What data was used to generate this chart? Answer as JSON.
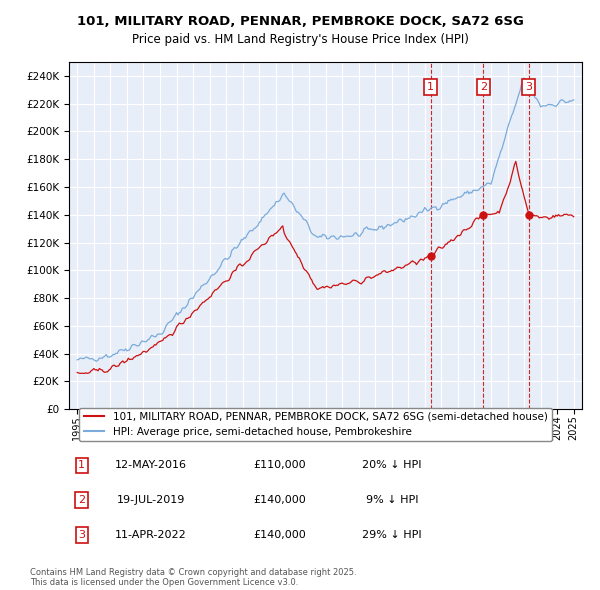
{
  "title_line1": "101, MILITARY ROAD, PENNAR, PEMBROKE DOCK, SA72 6SG",
  "title_line2": "Price paid vs. HM Land Registry's House Price Index (HPI)",
  "background_color": "#ffffff",
  "plot_bg_color": "#e8eef8",
  "grid_color": "#ffffff",
  "hpi_color": "#7aabdb",
  "price_color": "#cc1111",
  "annotation_color": "#cc1111",
  "legend_label_price": "101, MILITARY ROAD, PENNAR, PEMBROKE DOCK, SA72 6SG (semi-detached house)",
  "legend_label_hpi": "HPI: Average price, semi-detached house, Pembrokeshire",
  "sales": [
    {
      "num": 1,
      "date": "12-MAY-2016",
      "price": 110000,
      "pct": "20% ↓ HPI",
      "x": 2016.36
    },
    {
      "num": 2,
      "date": "19-JUL-2019",
      "price": 140000,
      "pct": "9% ↓ HPI",
      "x": 2019.54
    },
    {
      "num": 3,
      "date": "11-APR-2022",
      "price": 140000,
      "pct": "29% ↓ HPI",
      "x": 2022.28
    }
  ],
  "footnote": "Contains HM Land Registry data © Crown copyright and database right 2025.\nThis data is licensed under the Open Government Licence v3.0.",
  "ylim_min": 0,
  "ylim_max": 250000,
  "xmin": 1994.5,
  "xmax": 2025.5
}
